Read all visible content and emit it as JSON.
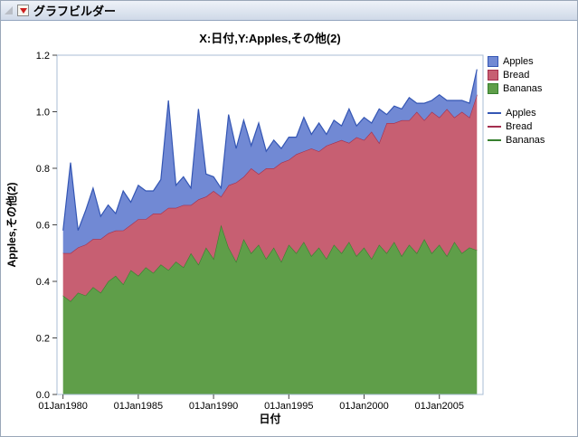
{
  "window": {
    "title": "グラフビルダー"
  },
  "chart_data": {
    "type": "area",
    "stacked": true,
    "title": "X:日付,Y:Apples,その他(2)",
    "xlabel": "日付",
    "ylabel": "Apples,その他(2)",
    "ylim": [
      0,
      1.2
    ],
    "ytick_step": 0.2,
    "grid": false,
    "legend_position": "right",
    "x_range": [
      1979.6,
      2007.9
    ],
    "x_tick_years": [
      1980,
      1985,
      1990,
      1995,
      2000,
      2005
    ],
    "x_tick_labels": [
      "01Jan1980",
      "01Jan1985",
      "01Jan1990",
      "01Jan1995",
      "01Jan2000",
      "01Jan2005"
    ],
    "stack_order_bottom_to_top": [
      "Bananas",
      "Bread",
      "Apples"
    ],
    "x": [
      1980,
      1980.5,
      1981,
      1981.5,
      1982,
      1982.5,
      1983,
      1983.5,
      1984,
      1984.5,
      1985,
      1985.5,
      1986,
      1986.5,
      1987,
      1987.5,
      1988,
      1988.5,
      1989,
      1989.5,
      1990,
      1990.5,
      1991,
      1991.5,
      1992,
      1992.5,
      1993,
      1993.5,
      1994,
      1994.5,
      1995,
      1995.5,
      1996,
      1996.5,
      1997,
      1997.5,
      1998,
      1998.5,
      1999,
      1999.5,
      2000,
      2000.5,
      2001,
      2001.5,
      2002,
      2002.5,
      2003,
      2003.5,
      2004,
      2004.5,
      2005,
      2005.5,
      2006,
      2006.5,
      2007,
      2007.5
    ],
    "series": [
      {
        "name": "Apples",
        "fill": "#7189d4",
        "line": "#3456b4",
        "values": [
          0.08,
          0.32,
          0.06,
          0.12,
          0.18,
          0.08,
          0.1,
          0.06,
          0.14,
          0.08,
          0.12,
          0.1,
          0.08,
          0.12,
          0.38,
          0.08,
          0.1,
          0.06,
          0.32,
          0.08,
          0.05,
          0.03,
          0.25,
          0.12,
          0.2,
          0.08,
          0.18,
          0.06,
          0.1,
          0.05,
          0.08,
          0.06,
          0.12,
          0.05,
          0.1,
          0.04,
          0.08,
          0.05,
          0.12,
          0.04,
          0.08,
          0.03,
          0.12,
          0.03,
          0.06,
          0.04,
          0.08,
          0.03,
          0.06,
          0.04,
          0.08,
          0.03,
          0.06,
          0.04,
          0.05,
          0.09
        ]
      },
      {
        "name": "Bread",
        "fill": "#c75f72",
        "line": "#a42f4e",
        "values": [
          0.15,
          0.17,
          0.16,
          0.18,
          0.17,
          0.19,
          0.17,
          0.16,
          0.19,
          0.16,
          0.2,
          0.17,
          0.21,
          0.18,
          0.22,
          0.19,
          0.22,
          0.17,
          0.23,
          0.18,
          0.24,
          0.1,
          0.22,
          0.28,
          0.22,
          0.3,
          0.25,
          0.32,
          0.28,
          0.35,
          0.3,
          0.35,
          0.32,
          0.38,
          0.34,
          0.4,
          0.36,
          0.4,
          0.35,
          0.42,
          0.38,
          0.45,
          0.36,
          0.46,
          0.42,
          0.48,
          0.44,
          0.5,
          0.42,
          0.5,
          0.45,
          0.52,
          0.44,
          0.5,
          0.46,
          0.55
        ]
      },
      {
        "name": "Bananas",
        "fill": "#5f9e49",
        "line": "#37802f",
        "values": [
          0.35,
          0.33,
          0.36,
          0.35,
          0.38,
          0.36,
          0.4,
          0.42,
          0.39,
          0.44,
          0.42,
          0.45,
          0.43,
          0.46,
          0.44,
          0.47,
          0.45,
          0.5,
          0.46,
          0.52,
          0.48,
          0.6,
          0.52,
          0.47,
          0.55,
          0.5,
          0.53,
          0.48,
          0.52,
          0.47,
          0.53,
          0.5,
          0.54,
          0.49,
          0.52,
          0.48,
          0.53,
          0.5,
          0.54,
          0.49,
          0.52,
          0.48,
          0.53,
          0.5,
          0.54,
          0.49,
          0.53,
          0.5,
          0.55,
          0.5,
          0.53,
          0.49,
          0.54,
          0.5,
          0.52,
          0.51
        ]
      }
    ],
    "legend": {
      "fill_entries": [
        "Apples",
        "Bread",
        "Bananas"
      ],
      "line_entries": [
        "Apples",
        "Bread",
        "Bananas"
      ]
    }
  }
}
